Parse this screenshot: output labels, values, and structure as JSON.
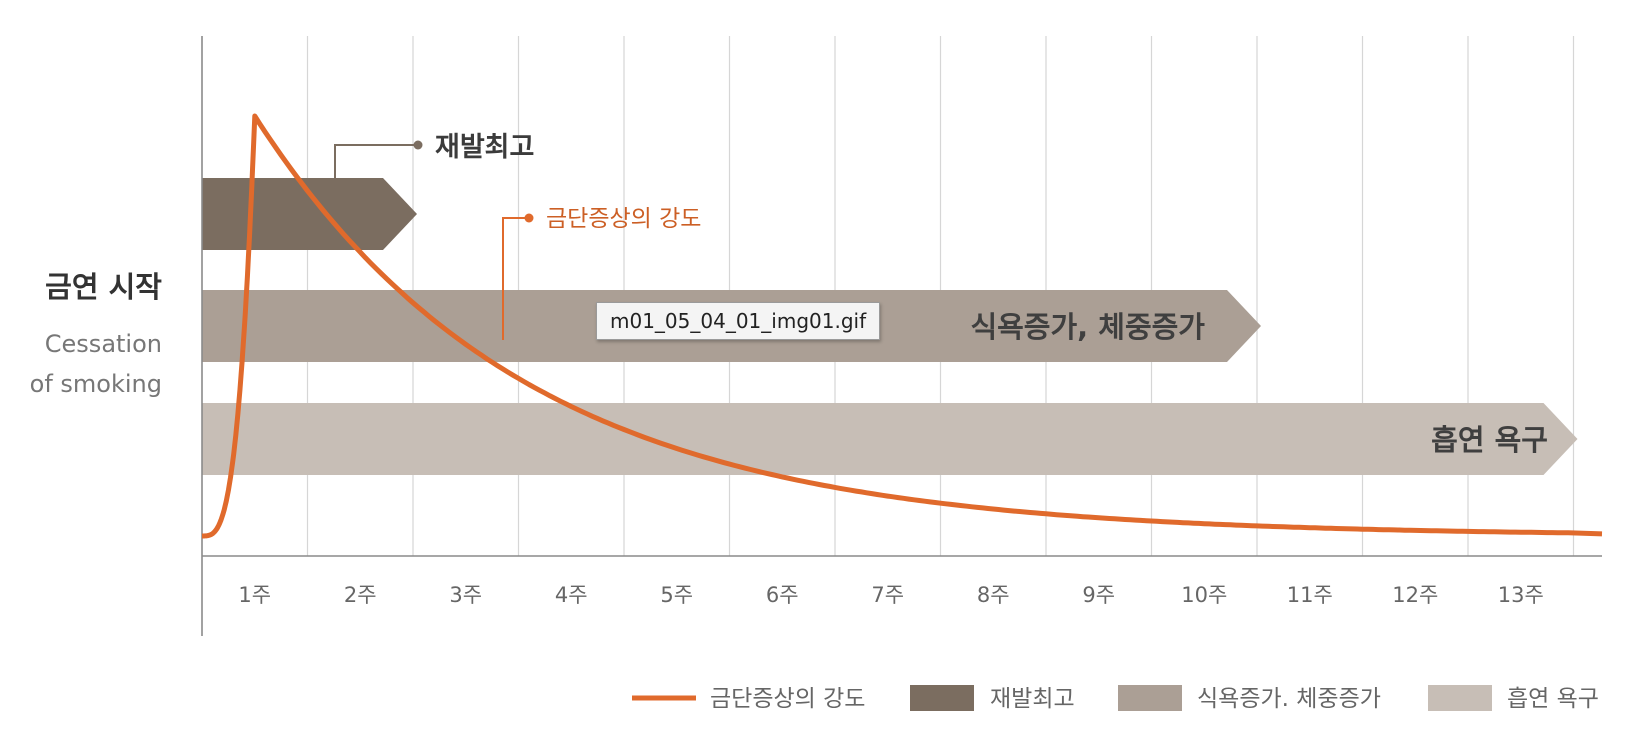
{
  "chart_data": {
    "type": "line",
    "categories": [
      "1주",
      "2주",
      "3주",
      "4주",
      "5주",
      "6주",
      "7주",
      "8주",
      "9주",
      "10주",
      "11주",
      "12주",
      "13주"
    ],
    "y_axis_label": {
      "ko": "금연 시작",
      "en_line1": "Cessation",
      "en_line2": "of smoking"
    },
    "series": [
      {
        "name": "금단증상의 강도",
        "color": "#e06a2c",
        "peak_week": 0.5,
        "peak_value": 100,
        "start_value": 0,
        "decay_per_week": 0.76,
        "end_value": 0
      }
    ],
    "bands": [
      {
        "name": "재발최고",
        "label": "",
        "color": "#7b6d60",
        "start_week": 0,
        "end_week": 2.0,
        "callout": "재발최고"
      },
      {
        "name": "식욕증가, 체중증가",
        "label": "식욕증가, 체중증가",
        "color": "#ab9f95",
        "start_week": 0,
        "end_week": 10.0
      },
      {
        "name": "흡연 욕구",
        "label": "흡연 욕구",
        "color": "#c7beb6",
        "start_week": 0,
        "end_week": 13.0
      }
    ],
    "line_callout": "금단증상의 강도",
    "legend": {
      "position": "bottom-right",
      "items": [
        {
          "label": "금단증상의 강도",
          "color": "#e06a2c",
          "kind": "line"
        },
        {
          "label": "재발최고",
          "color": "#7b6d60",
          "kind": "box"
        },
        {
          "label": "식욕증가. 체중증가",
          "color": "#ab9f95",
          "kind": "box"
        },
        {
          "label": "흡연 욕구",
          "color": "#c7beb6",
          "kind": "box"
        }
      ]
    },
    "grid": true
  },
  "tooltip": {
    "text": "m01_05_04_01_img01.gif"
  }
}
